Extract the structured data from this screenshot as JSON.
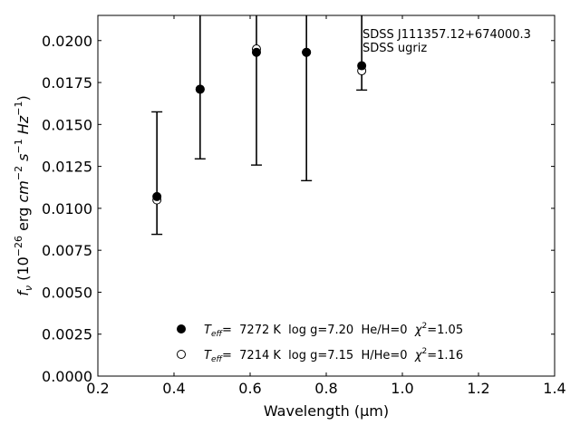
{
  "chart_data": {
    "type": "scatter",
    "xlabel": "Wavelength (μm)",
    "ylabel_parts": {
      "f": "f",
      "nu": "ν",
      "open": " (10",
      "exp26": "−26",
      "erg": " erg ",
      "cm": "cm",
      "exp_cm": "−2",
      "s": " s",
      "exp_s": "−1",
      "hz": " Hz",
      "exp_hz": "−1",
      "close": ")"
    },
    "xlim": [
      0.2,
      1.4
    ],
    "ylim": [
      0.0,
      0.0215
    ],
    "x_ticks": [
      "0.2",
      "0.4",
      "0.6",
      "0.8",
      "1.0",
      "1.2",
      "1.4"
    ],
    "y_ticks": [
      "0.0000",
      "0.0025",
      "0.0050",
      "0.0075",
      "0.0100",
      "0.0125",
      "0.0150",
      "0.0175",
      "0.0200"
    ],
    "annotation": [
      "SDSS J111357.12+674000.3",
      "SDSS ugriz"
    ],
    "observed": {
      "x": [
        0.3551,
        0.4686,
        0.6166,
        0.748,
        0.8932
      ],
      "y": [
        0.0107,
        0.0171,
        0.0193,
        0.0193,
        0.0185
      ],
      "y_low": [
        0.00845,
        0.01295,
        0.01258,
        0.01165,
        0.01705
      ],
      "y_high": [
        0.01575,
        0.0215,
        0.0215,
        0.0215,
        0.0215
      ]
    },
    "series": [
      {
        "marker": "filled",
        "y": [
          0.0107,
          0.0171,
          0.0193,
          0.0193,
          0.0185
        ],
        "legend": {
          "teff_label": "T",
          "teff_sub": "eff",
          "rest": "=  7272 K  log g=7.20  He/H=0  ",
          "chi": "χ",
          "chi_exp": "2",
          "chi_val": "=1.05"
        }
      },
      {
        "marker": "open",
        "y": [
          0.0105,
          0.0171,
          0.0195,
          0.0193,
          0.0182
        ],
        "legend": {
          "teff_label": "T",
          "teff_sub": "eff",
          "rest": "=  7214 K  log g=7.15  H/He=0  ",
          "chi": "χ",
          "chi_exp": "2",
          "chi_val": "=1.16"
        }
      }
    ]
  }
}
